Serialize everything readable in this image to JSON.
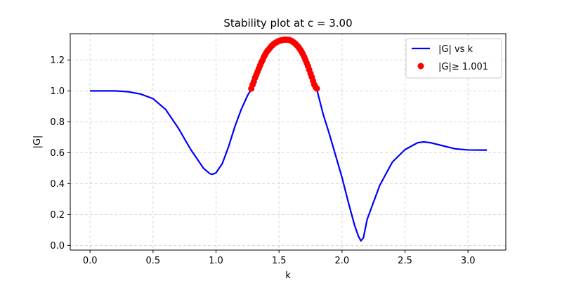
{
  "chart_data": {
    "type": "line",
    "title": "Stability plot at c = 3.00",
    "xlabel": "k",
    "ylabel": "|G|",
    "xlim": [
      -0.157,
      3.3
    ],
    "ylim": [
      -0.03,
      1.37
    ],
    "xticks": [
      0.0,
      0.5,
      1.0,
      1.5,
      2.0,
      2.5,
      3.0
    ],
    "xtick_labels": [
      "0.0",
      "0.5",
      "1.0",
      "1.5",
      "2.0",
      "2.5",
      "3.0"
    ],
    "yticks": [
      0.0,
      0.2,
      0.4,
      0.6,
      0.8,
      1.0,
      1.2
    ],
    "ytick_labels": [
      "0.0",
      "0.2",
      "0.4",
      "0.6",
      "0.8",
      "1.0",
      "1.2"
    ],
    "grid": true,
    "legend_position": "top-right",
    "series": [
      {
        "name": "|G| vs k",
        "kind": "line",
        "color": "#0000ff",
        "x": [
          0.0,
          0.1,
          0.2,
          0.3,
          0.4,
          0.5,
          0.6,
          0.7,
          0.8,
          0.9,
          0.95,
          0.97,
          1.0,
          1.05,
          1.1,
          1.15,
          1.2,
          1.25,
          1.28,
          1.3,
          1.4,
          1.5,
          1.55,
          1.6,
          1.7,
          1.8,
          1.85,
          1.9,
          2.0,
          2.05,
          2.1,
          2.13,
          2.15,
          2.17,
          2.2,
          2.3,
          2.4,
          2.5,
          2.6,
          2.65,
          2.7,
          2.8,
          2.9,
          3.0,
          3.1,
          3.15
        ],
        "y": [
          1.0,
          1.0,
          1.0,
          0.995,
          0.98,
          0.95,
          0.88,
          0.76,
          0.62,
          0.5,
          0.465,
          0.46,
          0.47,
          0.53,
          0.64,
          0.77,
          0.88,
          0.97,
          1.01,
          1.08,
          1.25,
          1.32,
          1.33,
          1.32,
          1.22,
          1.01,
          0.85,
          0.72,
          0.44,
          0.28,
          0.13,
          0.06,
          0.03,
          0.05,
          0.17,
          0.39,
          0.54,
          0.62,
          0.665,
          0.67,
          0.665,
          0.645,
          0.625,
          0.618,
          0.617,
          0.617
        ]
      },
      {
        "name": "|G|≥ 1.001",
        "kind": "scatter",
        "color": "#ff0000",
        "x": [
          1.28,
          1.29,
          1.3,
          1.31,
          1.32,
          1.33,
          1.34,
          1.35,
          1.36,
          1.37,
          1.38,
          1.39,
          1.4,
          1.41,
          1.42,
          1.43,
          1.44,
          1.45,
          1.46,
          1.47,
          1.48,
          1.49,
          1.5,
          1.51,
          1.52,
          1.53,
          1.54,
          1.55,
          1.56,
          1.57,
          1.58,
          1.59,
          1.6,
          1.61,
          1.62,
          1.63,
          1.64,
          1.65,
          1.66,
          1.67,
          1.68,
          1.69,
          1.7,
          1.71,
          1.72,
          1.73,
          1.74,
          1.75,
          1.76,
          1.77,
          1.78,
          1.79,
          1.8
        ],
        "y": [
          1.015,
          1.04,
          1.06,
          1.085,
          1.105,
          1.125,
          1.145,
          1.165,
          1.185,
          1.2,
          1.22,
          1.235,
          1.25,
          1.26,
          1.27,
          1.28,
          1.29,
          1.297,
          1.305,
          1.31,
          1.315,
          1.32,
          1.323,
          1.326,
          1.328,
          1.33,
          1.331,
          1.332,
          1.332,
          1.331,
          1.33,
          1.327,
          1.323,
          1.318,
          1.312,
          1.305,
          1.297,
          1.288,
          1.277,
          1.265,
          1.252,
          1.237,
          1.22,
          1.2,
          1.18,
          1.16,
          1.137,
          1.113,
          1.09,
          1.065,
          1.04,
          1.025,
          1.015
        ]
      }
    ]
  }
}
